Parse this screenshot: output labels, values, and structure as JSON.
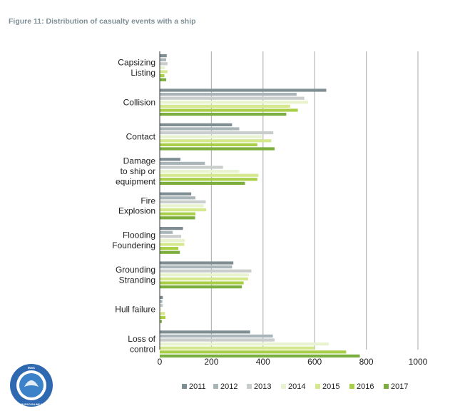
{
  "figure_title": "Figure 11: Distribution of casualty events with a ship",
  "logo": {
    "text": "ISSC",
    "url_text": "WWW.ISSCONLINE.ORG"
  },
  "colors": {
    "2011": "#7f8e93",
    "2012": "#a9b5b8",
    "2013": "#c9cdcb",
    "2014": "#eaf3cf",
    "2015": "#d5e88e",
    "2016": "#a9cf49",
    "2017": "#7cae3d",
    "grid": "#b6b6b6",
    "axis": "#333333"
  },
  "chart_data": {
    "type": "bar",
    "orientation": "horizontal",
    "title": "Figure 11: Distribution of casualty events with a ship",
    "xlabel": "",
    "ylabel": "",
    "xlim": [
      0,
      1000
    ],
    "xticks": [
      "0",
      "200",
      "400",
      "600",
      "800",
      "1000"
    ],
    "grid": true,
    "legend_position": "bottom",
    "categories": [
      {
        "name": "Capsizing Listing",
        "lines": [
          "Capsizing",
          "Listing"
        ]
      },
      {
        "name": "Collision",
        "lines": [
          "Collision"
        ]
      },
      {
        "name": "Contact",
        "lines": [
          "Contact"
        ]
      },
      {
        "name": "Damage to ship or equipment",
        "lines": [
          "Damage",
          "to ship or",
          "equipment"
        ]
      },
      {
        "name": "Fire Explosion",
        "lines": [
          "Fire",
          "Explosion"
        ]
      },
      {
        "name": "Flooding Foundering",
        "lines": [
          "Flooding",
          "Foundering"
        ]
      },
      {
        "name": "Grounding Stranding",
        "lines": [
          "Grounding",
          "Stranding"
        ]
      },
      {
        "name": "Hull failure",
        "lines": [
          "Hull failure"
        ]
      },
      {
        "name": "Loss of control",
        "lines": [
          "Loss of",
          "control"
        ]
      }
    ],
    "series": [
      {
        "name": "2011",
        "values": [
          27,
          645,
          280,
          80,
          122,
          90,
          285,
          12,
          350
        ]
      },
      {
        "name": "2012",
        "values": [
          25,
          530,
          308,
          175,
          138,
          50,
          280,
          10,
          438
        ]
      },
      {
        "name": "2013",
        "values": [
          30,
          560,
          440,
          245,
          178,
          83,
          355,
          12,
          445
        ]
      },
      {
        "name": "2014",
        "values": [
          20,
          575,
          395,
          308,
          170,
          97,
          345,
          5,
          655
        ]
      },
      {
        "name": "2015",
        "values": [
          30,
          505,
          432,
          382,
          180,
          95,
          342,
          20,
          600
        ]
      },
      {
        "name": "2016",
        "values": [
          18,
          535,
          378,
          378,
          138,
          72,
          325,
          22,
          722
        ]
      },
      {
        "name": "2017",
        "values": [
          25,
          490,
          445,
          330,
          137,
          78,
          318,
          8,
          775
        ]
      }
    ]
  }
}
